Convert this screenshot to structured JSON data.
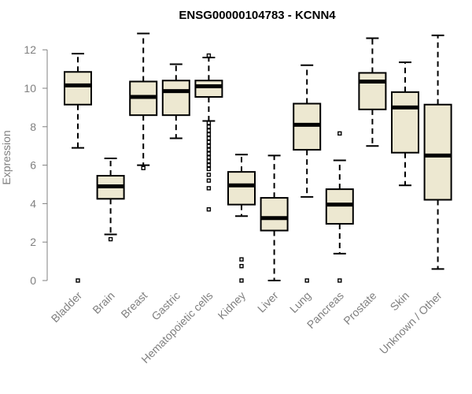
{
  "chart_data": {
    "type": "boxplot",
    "title": "ENSG00000104783 - KCNN4",
    "xlabel": "",
    "ylabel": "Expression",
    "ylim": [
      0,
      13
    ],
    "yticks": [
      0,
      2,
      4,
      6,
      8,
      10,
      12
    ],
    "colors": {
      "box_fill": "#EDE8D1",
      "stroke": "#000000",
      "axis_text": "#808080"
    },
    "categories": [
      "Bladder",
      "Brain",
      "Breast",
      "Gastric",
      "Hematopoietic cells",
      "Kidney",
      "Liver",
      "Lung",
      "Pancreas",
      "Prostate",
      "Skin",
      "Unknown / Other"
    ],
    "boxes": [
      {
        "name": "Bladder",
        "whisker_low": 6.9,
        "q1": 9.15,
        "median": 10.15,
        "q3": 10.85,
        "whisker_high": 11.8,
        "outliers": [
          0.0
        ]
      },
      {
        "name": "Brain",
        "whisker_low": 2.4,
        "q1": 4.25,
        "median": 4.9,
        "q3": 5.45,
        "whisker_high": 6.35,
        "outliers": [
          2.15
        ]
      },
      {
        "name": "Breast",
        "whisker_low": 6.0,
        "q1": 8.6,
        "median": 9.55,
        "q3": 10.35,
        "whisker_high": 12.85,
        "outliers": [
          5.85
        ]
      },
      {
        "name": "Gastric",
        "whisker_low": 7.4,
        "q1": 8.6,
        "median": 9.85,
        "q3": 10.4,
        "whisker_high": 11.25,
        "outliers": []
      },
      {
        "name": "Hematopoietic cells",
        "whisker_low": 8.3,
        "q1": 9.55,
        "median": 10.1,
        "q3": 10.4,
        "whisker_high": 11.6,
        "outliers": [
          11.7,
          8.2,
          8.0,
          7.8,
          7.6,
          7.4,
          7.2,
          7.0,
          6.8,
          6.6,
          6.4,
          6.2,
          6.0,
          5.8,
          5.5,
          5.2,
          4.8,
          3.7
        ]
      },
      {
        "name": "Kidney",
        "whisker_low": 3.35,
        "q1": 3.95,
        "median": 4.95,
        "q3": 5.65,
        "whisker_high": 6.55,
        "outliers": [
          1.1,
          0.75,
          0.0
        ]
      },
      {
        "name": "Liver",
        "whisker_low": 0.0,
        "q1": 2.6,
        "median": 3.25,
        "q3": 4.3,
        "whisker_high": 6.5,
        "outliers": []
      },
      {
        "name": "Lung",
        "whisker_low": 4.35,
        "q1": 6.8,
        "median": 8.1,
        "q3": 9.2,
        "whisker_high": 11.2,
        "outliers": [
          0.0
        ]
      },
      {
        "name": "Pancreas",
        "whisker_low": 1.4,
        "q1": 2.95,
        "median": 3.95,
        "q3": 4.75,
        "whisker_high": 6.25,
        "outliers": [
          7.65,
          0.0
        ]
      },
      {
        "name": "Prostate",
        "whisker_low": 7.0,
        "q1": 8.9,
        "median": 10.35,
        "q3": 10.8,
        "whisker_high": 12.6,
        "outliers": []
      },
      {
        "name": "Skin",
        "whisker_low": 4.95,
        "q1": 6.65,
        "median": 9.0,
        "q3": 9.8,
        "whisker_high": 11.35,
        "outliers": []
      },
      {
        "name": "Unknown / Other",
        "whisker_low": 0.6,
        "q1": 4.2,
        "median": 6.5,
        "q3": 9.15,
        "whisker_high": 12.75,
        "outliers": []
      }
    ]
  }
}
